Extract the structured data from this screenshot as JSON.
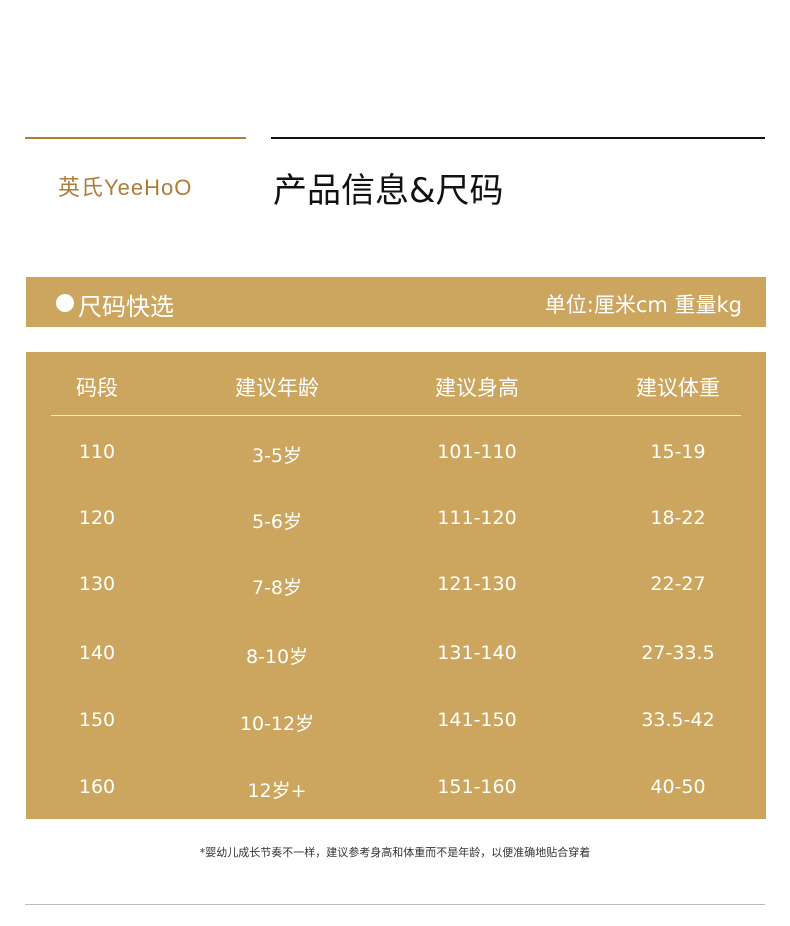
{
  "header": {
    "logo": "英氏YeeHoO",
    "title": "产品信息&尺码"
  },
  "bar": {
    "label": "尺码快选",
    "unit": "单位:厘米cm 重量kg"
  },
  "table": {
    "columns": [
      "码段",
      "建议年龄",
      "建议身高",
      "建议体重"
    ],
    "rows": [
      [
        "110",
        "3-5岁",
        "101-110",
        "15-19"
      ],
      [
        "120",
        "5-6岁",
        "111-120",
        "18-22"
      ],
      [
        "130",
        "7-8岁",
        "121-130",
        "22-27"
      ],
      [
        "140",
        "8-10岁",
        "131-140",
        "27-33.5"
      ],
      [
        "150",
        "10-12岁",
        "141-150",
        "33.5-42"
      ],
      [
        "160",
        "12岁+",
        "151-160",
        "40-50"
      ]
    ]
  },
  "note": "*婴幼儿成长节奏不一样，建议参考身高和体重而不是年龄，以便准确地贴合穿着",
  "colors": {
    "gold": "#cca55e",
    "brand": "#b07c3a"
  }
}
